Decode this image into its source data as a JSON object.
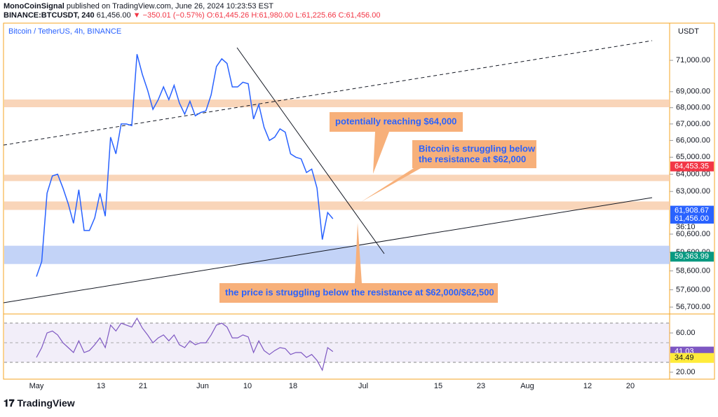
{
  "header": {
    "author": "MonoCoinSignal",
    "published": "published on TradingView.com, June 26, 2024 10:23:53 EST",
    "symbol": "BINANCE:BTCUSDT, 240",
    "last": "61,456.00",
    "change": "▼ −350.01 (−0.57%)",
    "ohlc": [
      "O:61,445.26",
      "H:61,980.00",
      "L:61,225.66",
      "C:61,456.00"
    ]
  },
  "chart_data": {
    "type": "line",
    "title": "Bitcoin / TetherUS, 4h, BINANCE",
    "currency": "USDT",
    "log_scale": true,
    "x_labels": [
      "May",
      "13",
      "21",
      "Jun",
      "10",
      "18",
      "Jul",
      "15",
      "23",
      "Aug",
      "12",
      "20"
    ],
    "series": [
      {
        "name": "BTCUSDT",
        "color": "#2962ff",
        "values": [
          58300,
          59100,
          62900,
          63900,
          64000,
          63200,
          62300,
          61200,
          63100,
          60800,
          60800,
          61500,
          62900,
          61600,
          66200,
          65200,
          67000,
          67000,
          66900,
          71400,
          70100,
          69100,
          67900,
          68500,
          69300,
          68500,
          69400,
          68300,
          67600,
          68400,
          67500,
          67700,
          67800,
          68800,
          70600,
          71100,
          70800,
          69300,
          69300,
          69600,
          69500,
          67300,
          68200,
          66800,
          66000,
          66200,
          66700,
          66500,
          65200,
          65000,
          64900,
          64100,
          64300,
          63200,
          60300,
          61800,
          61456
        ]
      }
    ],
    "ylim": [
      56380,
      73450
    ],
    "yticks": [
      {
        "value": 71000,
        "label": "71,000.00"
      },
      {
        "value": 69000,
        "label": "69,000.00"
      },
      {
        "value": 68000,
        "label": "68,000.00"
      },
      {
        "value": 67000,
        "label": "67,000.00"
      },
      {
        "value": 66000,
        "label": "66,000.00"
      },
      {
        "value": 65000,
        "label": "65,000.00"
      },
      {
        "value": 64000,
        "label": "64,000.00"
      },
      {
        "value": 63000,
        "label": "63,000.00"
      },
      {
        "value": 60600,
        "label": "60,600.00"
      },
      {
        "value": 59600,
        "label": "59,600.00"
      },
      {
        "value": 58600,
        "label": "58,600.00"
      },
      {
        "value": 57600,
        "label": "57,600.00"
      },
      {
        "value": 56700,
        "label": "56,700.00"
      }
    ],
    "zones": [
      {
        "range": [
          68030,
          68510
        ],
        "color": "#f8cba8"
      },
      {
        "range": [
          63600,
          63970
        ],
        "color": "#f8cba8"
      },
      {
        "range": [
          61950,
          62430
        ],
        "color": "#f8cba8"
      },
      {
        "range": [
          58970,
          59960
        ],
        "color": "#b4c8f5"
      }
    ],
    "price_tags": [
      {
        "value": 64453.35,
        "label": "64,453.35",
        "color": "#f23645"
      },
      {
        "value": 61908.67,
        "label": "61,908.67",
        "color": "#2962ff"
      },
      {
        "value": 61456,
        "label": "61,456.00",
        "color": "#2962ff"
      },
      {
        "value": 59363.99,
        "label": "59,363.99",
        "color": "#089981"
      }
    ],
    "countdown": "36:10",
    "annotations": [
      "potentially reaching $64,000",
      "Bitcoin is struggling below",
      "the resistance at $62,000",
      "the price is struggling below the resistance at $62,000/$62,500"
    ],
    "rsi": {
      "color": "#7e57c2",
      "values": [
        35,
        45,
        60,
        62,
        58,
        50,
        45,
        40,
        52,
        40,
        42,
        48,
        55,
        45,
        68,
        62,
        70,
        68,
        66,
        75,
        65,
        58,
        50,
        55,
        58,
        52,
        58,
        48,
        45,
        52,
        48,
        50,
        50,
        58,
        68,
        70,
        66,
        55,
        55,
        58,
        56,
        40,
        52,
        42,
        38,
        42,
        45,
        44,
        38,
        40,
        40,
        35,
        38,
        32,
        22,
        45,
        41
      ],
      "ylim": [
        13.6,
        77.9
      ],
      "yticks": [
        {
          "value": 60,
          "label": "60.00"
        },
        {
          "value": 20,
          "label": "20.00"
        }
      ],
      "tags": [
        {
          "value": 41.03,
          "label": "41.03",
          "color": "#7e57c2"
        },
        {
          "value": 34.49,
          "label": "34.49",
          "color": "#ffeb3b"
        }
      ]
    }
  },
  "footer": "TradingView"
}
